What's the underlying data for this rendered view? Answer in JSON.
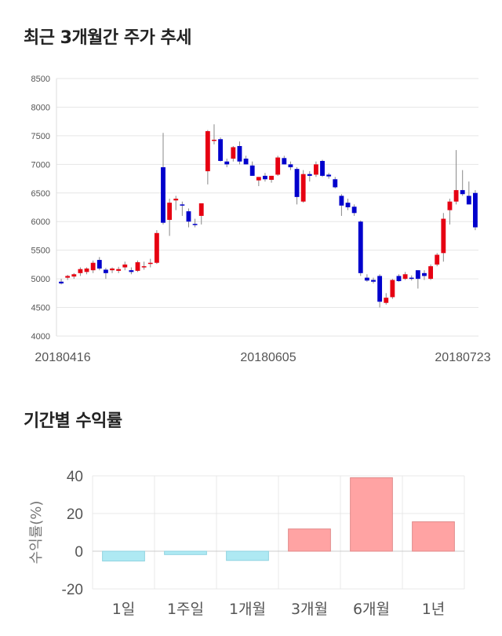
{
  "sections": {
    "price_title": "최근 3개월간 주가 추세",
    "return_title": "기간별 수익률"
  },
  "colors": {
    "up": "#e60012",
    "down": "#0000cc",
    "positive_bar": "#ffa3a3",
    "negative_bar": "#aee9f3"
  },
  "chart_data": [
    {
      "type": "candlestick",
      "title": "",
      "ylim": [
        4000,
        8500
      ],
      "yticks": [
        "8500",
        "8000",
        "7500",
        "7000",
        "6500",
        "6000",
        "5500",
        "5000",
        "4500",
        "4000"
      ],
      "xticks": [
        "20180416",
        "20180605",
        "20180723"
      ],
      "grid": true,
      "candles": [
        [
          4950,
          5000,
          4900,
          4920
        ],
        [
          5020,
          5070,
          4980,
          5050
        ],
        [
          5040,
          5100,
          5000,
          5080
        ],
        [
          5100,
          5200,
          5050,
          5170
        ],
        [
          5120,
          5200,
          5080,
          5180
        ],
        [
          5150,
          5320,
          5100,
          5280
        ],
        [
          5330,
          5380,
          5150,
          5180
        ],
        [
          5160,
          5190,
          5000,
          5100
        ],
        [
          5150,
          5200,
          5100,
          5180
        ],
        [
          5140,
          5210,
          5100,
          5170
        ],
        [
          5200,
          5300,
          5150,
          5250
        ],
        [
          5150,
          5200,
          5080,
          5120
        ],
        [
          5140,
          5320,
          5120,
          5290
        ],
        [
          5200,
          5300,
          5160,
          5220
        ],
        [
          5260,
          5350,
          5200,
          5280
        ],
        [
          5280,
          5850,
          5260,
          5800
        ],
        [
          6950,
          7550,
          5950,
          5980
        ],
        [
          6030,
          6400,
          5750,
          6330
        ],
        [
          6370,
          6450,
          6200,
          6400
        ],
        [
          6300,
          6350,
          6100,
          6280
        ],
        [
          6180,
          6230,
          5900,
          6000
        ],
        [
          5960,
          6050,
          5900,
          5950
        ],
        [
          6100,
          6300,
          5950,
          6320
        ],
        [
          6880,
          7600,
          6650,
          7580
        ],
        [
          7420,
          7700,
          7350,
          7430
        ],
        [
          7440,
          7470,
          7050,
          7060
        ],
        [
          7050,
          7100,
          6950,
          7000
        ],
        [
          7100,
          7320,
          7050,
          7300
        ],
        [
          7320,
          7400,
          7000,
          7050
        ],
        [
          7100,
          7150,
          7000,
          7000
        ],
        [
          6980,
          7050,
          6800,
          6800
        ],
        [
          6720,
          6780,
          6620,
          6780
        ],
        [
          6800,
          6850,
          6700,
          6740
        ],
        [
          6730,
          6800,
          6680,
          6800
        ],
        [
          6820,
          7150,
          6800,
          7120
        ],
        [
          7110,
          7150,
          7000,
          7000
        ],
        [
          7000,
          7050,
          6900,
          6950
        ],
        [
          6920,
          6950,
          6300,
          6430
        ],
        [
          6350,
          6900,
          6330,
          6830
        ],
        [
          6830,
          6880,
          6700,
          6800
        ],
        [
          6820,
          7050,
          6780,
          7000
        ],
        [
          7060,
          7080,
          6780,
          6800
        ],
        [
          6820,
          6850,
          6750,
          6790
        ],
        [
          6740,
          6780,
          6580,
          6600
        ],
        [
          6450,
          6480,
          6100,
          6280
        ],
        [
          6330,
          6400,
          6200,
          6250
        ],
        [
          6260,
          6300,
          6100,
          6150
        ],
        [
          6000,
          6020,
          5050,
          5100
        ],
        [
          5020,
          5080,
          4950,
          4970
        ],
        [
          4980,
          5020,
          4920,
          4950
        ],
        [
          5050,
          5080,
          4500,
          4600
        ],
        [
          4580,
          4750,
          4550,
          4670
        ],
        [
          4680,
          5000,
          4650,
          4980
        ],
        [
          5050,
          5080,
          4950,
          4960
        ],
        [
          5000,
          5120,
          4980,
          5080
        ],
        [
          5020,
          5060,
          4970,
          5000
        ],
        [
          5150,
          5150,
          4830,
          5000
        ],
        [
          5100,
          5150,
          4980,
          5050
        ],
        [
          5000,
          5250,
          4980,
          5220
        ],
        [
          5250,
          5450,
          5220,
          5420
        ],
        [
          5450,
          6150,
          5300,
          6050
        ],
        [
          6200,
          6400,
          5950,
          6350
        ],
        [
          6350,
          7250,
          6300,
          6550
        ],
        [
          6550,
          6900,
          6450,
          6480
        ],
        [
          6450,
          6700,
          6300,
          6300
        ],
        [
          6500,
          6550,
          5850,
          5900
        ]
      ]
    },
    {
      "type": "bar",
      "title": "",
      "ylabel": "수익률(%)",
      "ylim": [
        -20,
        40
      ],
      "yticks": [
        "40",
        "20",
        "0",
        "-20"
      ],
      "categories": [
        "1일",
        "1주일",
        "1개월",
        "3개월",
        "6개월",
        "1년"
      ],
      "values": [
        -5.2,
        -1.8,
        -4.9,
        11.8,
        39.0,
        15.6
      ],
      "grid": true
    }
  ]
}
